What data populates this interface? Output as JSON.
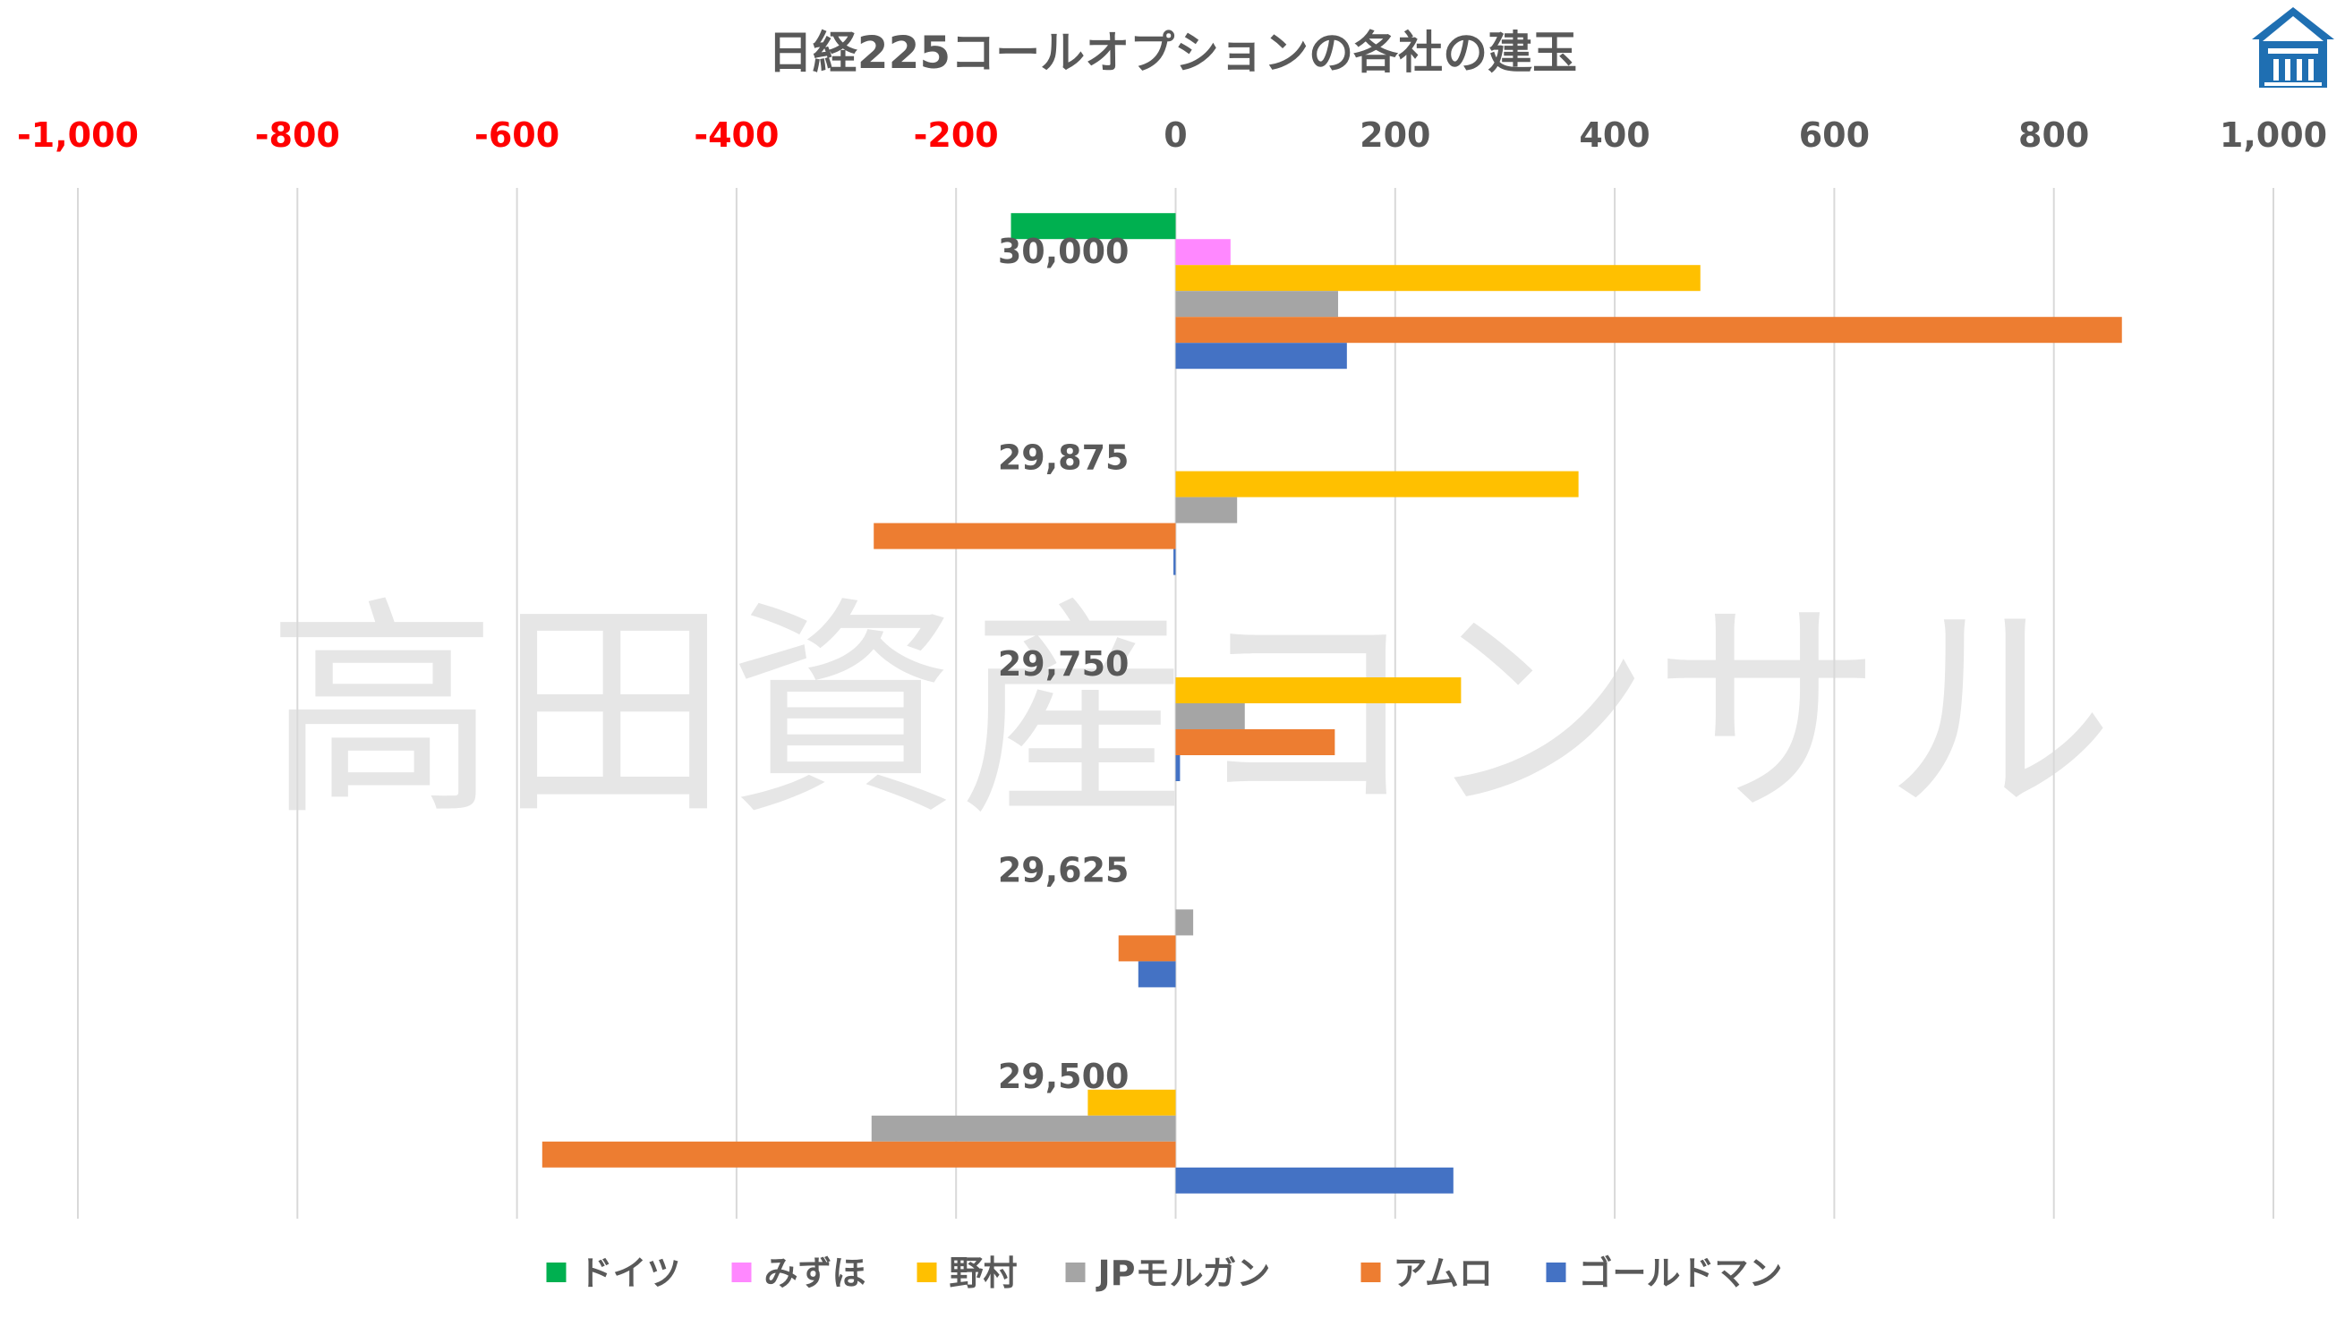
{
  "chart_data": {
    "type": "bar",
    "orientation": "horizontal",
    "title": "日経225コールオプションの各社の建玉",
    "watermark": "高田資産コンサル",
    "xlim": [
      -1000,
      1000
    ],
    "x_ticks": [
      -1000,
      -800,
      -600,
      -400,
      -200,
      0,
      200,
      400,
      600,
      800,
      1000
    ],
    "x_tick_labels": [
      "-1,000",
      "-800",
      "-600",
      "-400",
      "-200",
      "0",
      "200",
      "400",
      "600",
      "800",
      "1,000"
    ],
    "negative_tick_color": "#ff0000",
    "positive_tick_color": "#595959",
    "grid": "vertical",
    "legend_position": "bottom",
    "categories": [
      "30,000",
      "29,875",
      "29,750",
      "29,625",
      "29,500"
    ],
    "series": [
      {
        "name": "ドイツ",
        "color": "#00b050",
        "values": [
          -150,
          0,
          0,
          0,
          0
        ]
      },
      {
        "name": "みずほ",
        "color": "#ff88ff",
        "values": [
          50,
          0,
          0,
          0,
          0
        ]
      },
      {
        "name": "野村",
        "color": "#ffc000",
        "values": [
          478,
          367,
          260,
          0,
          -80
        ]
      },
      {
        "name": "JPモルガン",
        "color": "#a5a5a5",
        "values": [
          148,
          56,
          63,
          16,
          -277
        ]
      },
      {
        "name": "アムロ",
        "color": "#ed7d31",
        "values": [
          862,
          -275,
          145,
          -52,
          -577
        ]
      },
      {
        "name": "ゴールドマン",
        "color": "#4472c4",
        "values": [
          156,
          -2,
          4,
          -34,
          253
        ]
      }
    ]
  },
  "logo": {
    "name": "house-logo",
    "color": "#1f6fb2"
  }
}
